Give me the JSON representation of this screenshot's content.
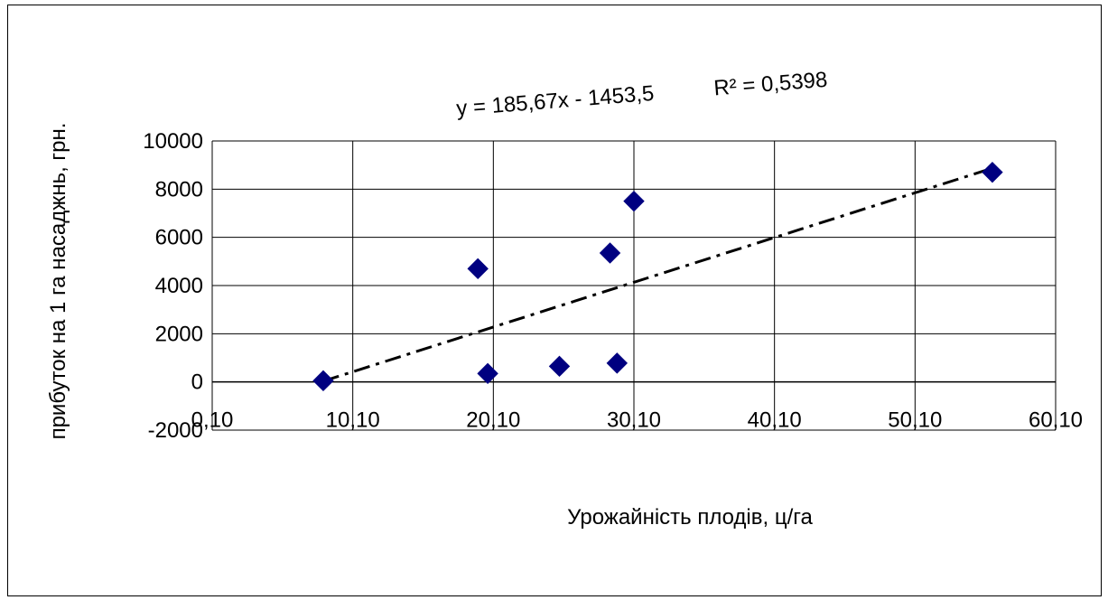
{
  "chart_data": {
    "type": "scatter",
    "title": "",
    "xlabel": "Урожайність плодів,  ц/га",
    "ylabel": "прибуток на 1 га насаджнь, грн.",
    "xlim": [
      0.1,
      60.1
    ],
    "ylim": [
      -2000,
      10000
    ],
    "x_ticks": [
      "0,10",
      "10,10",
      "20,10",
      "30,10",
      "40,10",
      "50,10",
      "60,10"
    ],
    "y_ticks": [
      "-2000",
      "0",
      "2000",
      "4000",
      "6000",
      "8000",
      "10000"
    ],
    "grid": true,
    "marker_color": "#000080",
    "series": [
      {
        "points": [
          {
            "x": 8.0,
            "y": 50
          },
          {
            "x": 19.0,
            "y": 4700
          },
          {
            "x": 19.7,
            "y": 350
          },
          {
            "x": 24.8,
            "y": 650
          },
          {
            "x": 28.4,
            "y": 5350
          },
          {
            "x": 28.9,
            "y": 780
          },
          {
            "x": 30.1,
            "y": 7500
          },
          {
            "x": 55.6,
            "y": 8700
          }
        ]
      }
    ],
    "trendline": {
      "style": "dash-dot",
      "x_range": [
        8.0,
        55.6
      ],
      "equation": "y = 185,67x - 1453,5",
      "r2_label": "R² = 0,5398"
    }
  }
}
